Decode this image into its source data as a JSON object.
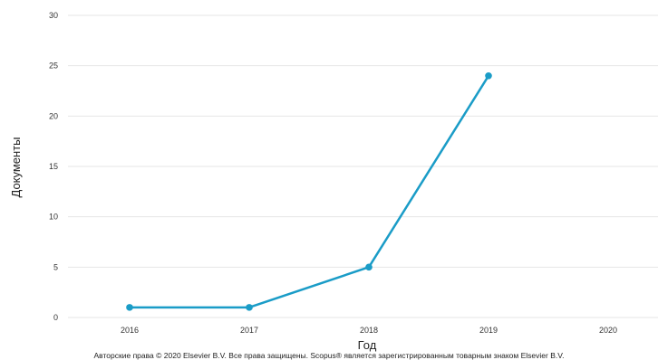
{
  "chart_data": {
    "type": "line",
    "x": [
      2016,
      2017,
      2018,
      2019
    ],
    "series": [
      {
        "values": [
          1,
          1,
          5,
          24
        ]
      }
    ],
    "x_ticks": [
      "2016",
      "2017",
      "2018",
      "2019",
      "2020"
    ],
    "y_ticks": [
      "0",
      "5",
      "10",
      "15",
      "20",
      "25",
      "30"
    ],
    "ylim": [
      0,
      30
    ],
    "xlabel": "Год",
    "ylabel": "Документы",
    "grid": "horizontal",
    "line_color": "#1a9cc7"
  },
  "footer": {
    "copyright": "Авторские права © 2020 Elsevier B.V. Все права защищены. Scopus® является зарегистрированным товарным знаком Elsevier B.V."
  }
}
